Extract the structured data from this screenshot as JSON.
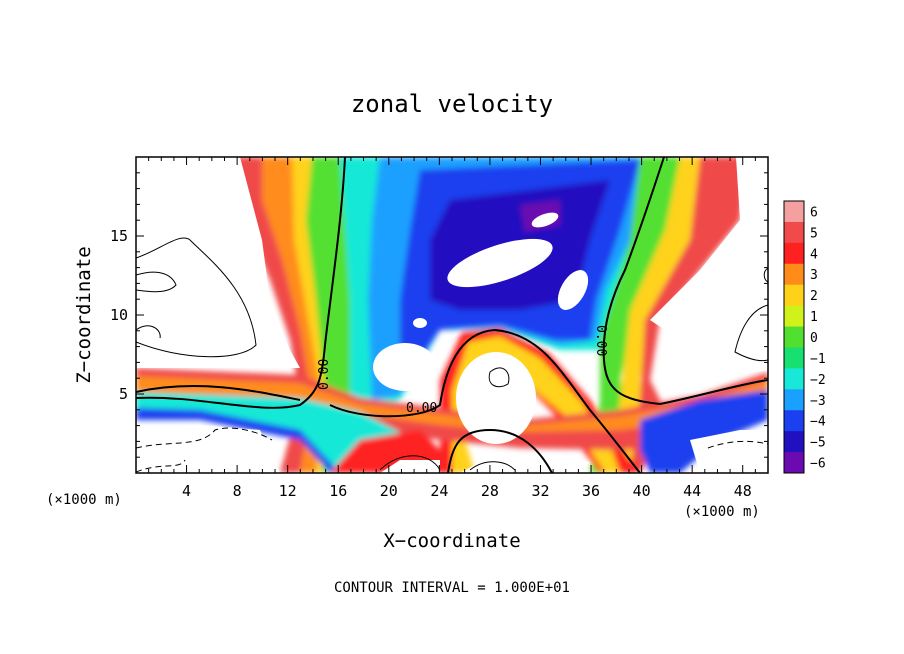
{
  "chart_data": {
    "type": "heatmap",
    "title": "zonal velocity",
    "xlabel": "X−coordinate",
    "ylabel": "Z−coordinate",
    "x_unit_label": "(×1000 m)",
    "y_unit_label": "(×1000 m)",
    "footer": "CONTOUR INTERVAL = 1.000E+01",
    "xlim": [
      0,
      50
    ],
    "ylim": [
      0,
      20
    ],
    "x_ticks": [
      "4",
      "8",
      "12",
      "16",
      "20",
      "24",
      "28",
      "32",
      "36",
      "40",
      "44",
      "48"
    ],
    "y_ticks": [
      "5",
      "10",
      "15"
    ],
    "colorbar": {
      "range": [
        -6,
        6
      ],
      "labels": [
        "6",
        "5",
        "4",
        "3",
        "2",
        "1",
        "0",
        "−1",
        "−2",
        "−3",
        "−4",
        "−5",
        "−6"
      ]
    },
    "contour_labels": [
      "0.00",
      "0.00",
      "0.00"
    ],
    "colors": {
      "level_pos_6": "#f4a0a0",
      "level_pos_5": "#f04a4a",
      "level_pos_4": "#ff2020",
      "level_pos_3": "#ff8c1a",
      "level_pos_2": "#ffd21a",
      "level_pos_1": "#d0f21a",
      "level_0": "#52e030",
      "level_neg_1": "#18e070",
      "level_neg_2": "#18e8d8",
      "level_neg_3": "#1aa0ff",
      "level_neg_4": "#1a40f0",
      "level_neg_5": "#2010c0",
      "level_neg_6": "#6a0ab0"
    }
  }
}
